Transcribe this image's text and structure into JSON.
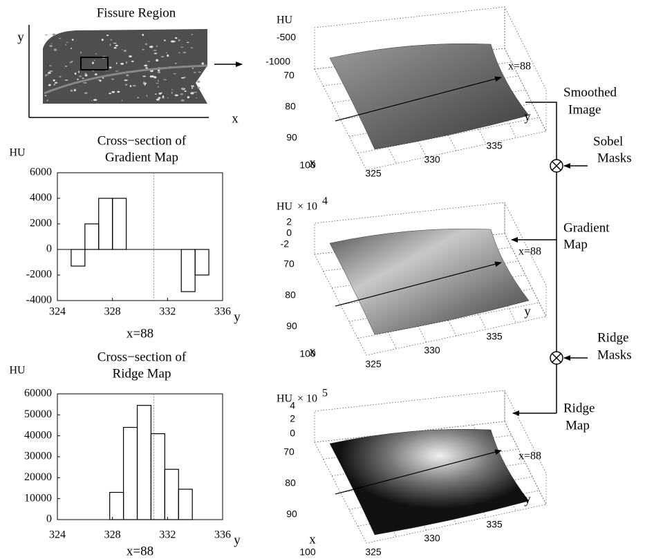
{
  "fissure_region": {
    "title": "Fissure Region",
    "x_label": "x",
    "y_label": "y"
  },
  "chart_data": [
    {
      "type": "histogram",
      "title": [
        "Cross−section of",
        "Gradient Map"
      ],
      "y_label": "HU",
      "x_label": "y",
      "annotation": "x=88",
      "bins": [
        324,
        325,
        326,
        327,
        328,
        329,
        330,
        331,
        332,
        333,
        334,
        335
      ],
      "values": [
        0,
        -1300,
        2000,
        4000,
        4000,
        0,
        0,
        0,
        0,
        -3300,
        -2000
      ],
      "vline": 331,
      "xlim": [
        324,
        336
      ],
      "xticks": [
        324,
        328,
        332,
        336
      ],
      "ylim": [
        -4000,
        6000
      ],
      "yticks": [
        -4000,
        -2000,
        0,
        2000,
        4000,
        6000
      ]
    },
    {
      "type": "histogram",
      "title": [
        "Cross−section of",
        "Ridge Map"
      ],
      "y_label": "HU",
      "x_label": "y",
      "annotation": "x=88",
      "bins": [
        327.8,
        328.8,
        329.8,
        330.8,
        331.8,
        332.8,
        333.8
      ],
      "values": [
        13000,
        44000,
        54500,
        41000,
        24000,
        14500
      ],
      "vline": 331,
      "xlim": [
        324,
        336
      ],
      "xticks": [
        324,
        328,
        332,
        336
      ],
      "ylim": [
        0,
        60000
      ],
      "yticks": [
        0,
        10000,
        20000,
        30000,
        40000,
        50000,
        60000
      ]
    }
  ],
  "surfaces": [
    {
      "z_label": "HU",
      "z_ticks": [
        -500,
        -1000
      ],
      "x_label": "x",
      "y_label": "y",
      "x_ticks": [
        70,
        80,
        90,
        100
      ],
      "y_ticks": [
        325,
        330,
        335
      ],
      "annotation": "x=88"
    },
    {
      "z_label": "HU",
      "exponent": "× 10",
      "power": "4",
      "z_ticks": [
        2,
        0,
        -2
      ],
      "x_label": "x",
      "y_label": "y",
      "x_ticks": [
        70,
        80,
        90,
        100
      ],
      "y_ticks": [
        325,
        330,
        335
      ],
      "annotation": "x=88"
    },
    {
      "z_label": "HU",
      "exponent": "× 10",
      "power": "5",
      "z_ticks": [
        4,
        2,
        0
      ],
      "x_label": "x",
      "y_label": "y",
      "x_ticks": [
        70,
        80,
        90,
        100
      ],
      "y_ticks": [
        325,
        330,
        335
      ],
      "annotation": "x=88"
    }
  ],
  "flow": {
    "smoothed_image": [
      "Smoothed",
      "Image"
    ],
    "sobel_masks": [
      "Sobel",
      "Masks"
    ],
    "gradient_map": [
      "Gradient",
      "Map"
    ],
    "ridge_masks": [
      "Ridge",
      "Masks"
    ],
    "ridge_map": [
      "Ridge",
      "Map"
    ]
  }
}
